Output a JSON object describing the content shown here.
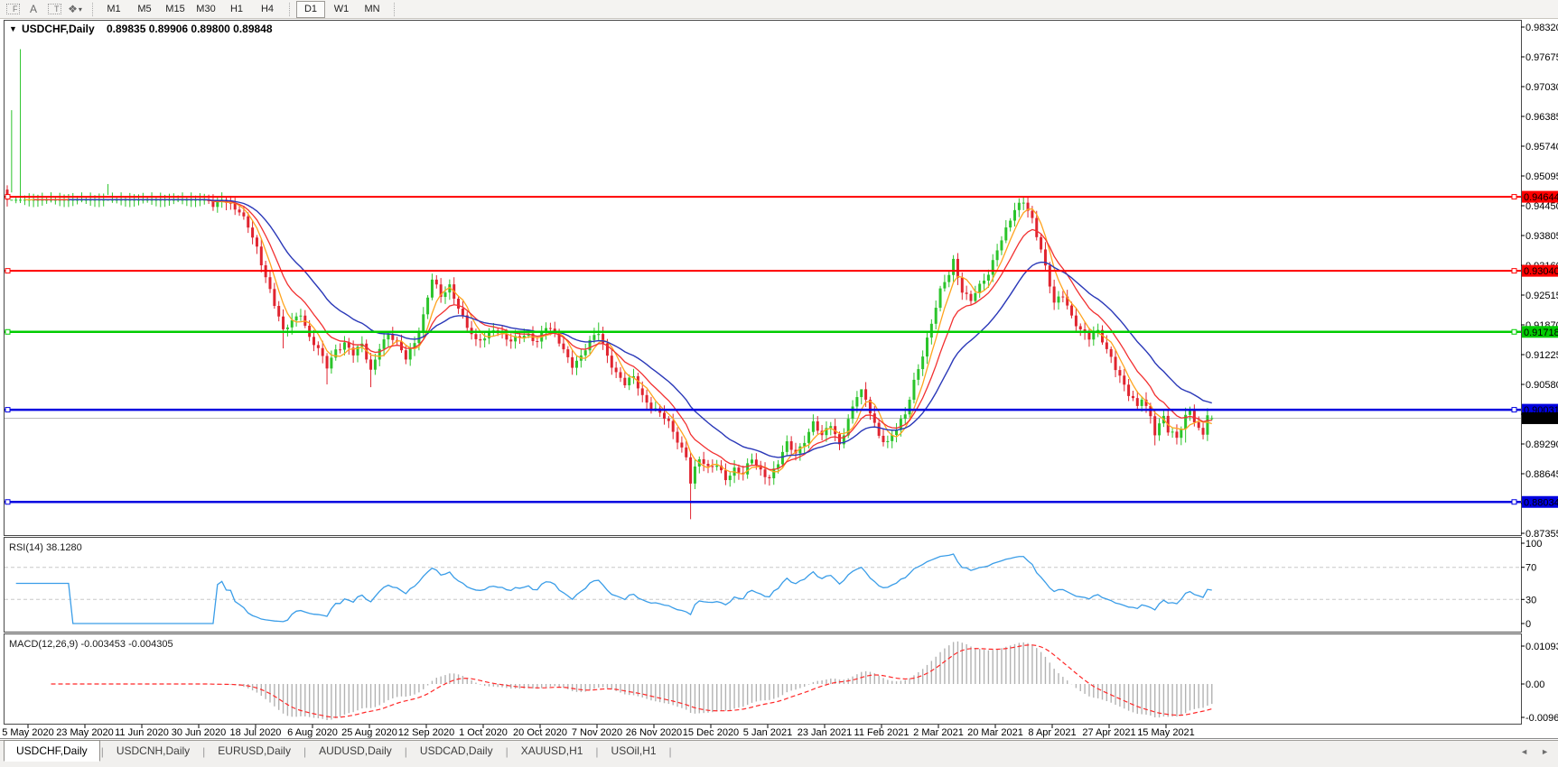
{
  "toolbar": {
    "tools": [
      {
        "name": "fibo-tool-icon",
        "glyph": "F"
      },
      {
        "name": "label-tool-icon",
        "glyph": "A"
      },
      {
        "name": "text-tool-icon",
        "glyph": "T"
      },
      {
        "name": "arrow-style-tool-icon",
        "glyph": "❖"
      }
    ],
    "dropdown_caret": "▾",
    "timeframes": [
      "M1",
      "M5",
      "M15",
      "M30",
      "H1",
      "H4",
      "D1",
      "W1",
      "MN"
    ],
    "active_timeframe": "D1"
  },
  "chart": {
    "collapse_glyph": "▼",
    "symbol_label": "USDCHF,Daily",
    "ohlc_display": "0.89835 0.89906 0.89800 0.89848"
  },
  "chart_data": {
    "type": "candlestick",
    "symbol": "USDCHF",
    "timeframe": "Daily",
    "bars_total": 276,
    "current_bar": {
      "open": 0.89835,
      "high": 0.89906,
      "low": 0.898,
      "close": 0.89848
    },
    "price_axis": {
      "ticks": [
        "0.98320",
        "0.97675",
        "0.97030",
        "0.96385",
        "0.95740",
        "0.95095",
        "0.94450",
        "0.93805",
        "0.93160",
        "0.92515",
        "0.91870",
        "0.91225",
        "0.90580",
        "0.89935",
        "0.89290",
        "0.88645",
        "0.88000",
        "0.87355"
      ],
      "top": 0.9832,
      "bottom": 0.87355,
      "step": 0.00645
    },
    "time_axis": [
      "5 May 2020",
      "23 May 2020",
      "11 Jun 2020",
      "30 Jun 2020",
      "18 Jul 2020",
      "6 Aug 2020",
      "25 Aug 2020",
      "12 Sep 2020",
      "1 Oct 2020",
      "20 Oct 2020",
      "7 Nov 2020",
      "26 Nov 2020",
      "15 Dec 2020",
      "5 Jan 2021",
      "23 Jan 2021",
      "11 Feb 2021",
      "2 Mar 2021",
      "20 Mar 2021",
      "8 Apr 2021",
      "27 Apr 2021",
      "15 May 2021"
    ],
    "horizontal_lines": [
      {
        "price": "0.94644",
        "value": 0.94644,
        "color": "#ff0000",
        "width": 2,
        "role": "resistance"
      },
      {
        "price": "0.93040",
        "value": 0.9304,
        "color": "#ff0000",
        "width": 2,
        "role": "resistance"
      },
      {
        "price": "0.91718",
        "value": 0.91718,
        "color": "#00cc00",
        "width": 2.5,
        "role": "level"
      },
      {
        "price": "0.90031",
        "value": 0.90031,
        "color": "#0000e0",
        "width": 2.5,
        "role": "support"
      },
      {
        "price": "0.88034",
        "value": 0.88034,
        "color": "#0000e0",
        "width": 2.5,
        "role": "support"
      }
    ],
    "current_price_line": {
      "price": "0.89848",
      "value": 0.89848,
      "line_color": "#bcbcbc",
      "label_bg": "#000000"
    },
    "candle_colors": {
      "up": "#2bc42b",
      "down": "#e0242f"
    },
    "moving_averages": [
      {
        "name": "fast",
        "kind": "sma",
        "period": 5,
        "color": "#ffa41e"
      },
      {
        "name": "medium",
        "kind": "ema",
        "period": 11,
        "color": "#f23030"
      },
      {
        "name": "slow",
        "kind": "ema",
        "period": 24,
        "color": "#2a38b8"
      }
    ],
    "price_path": [
      [
        0,
        0.97
      ],
      [
        2,
        0.9748
      ],
      [
        3,
        0.9725
      ],
      [
        5,
        0.9692
      ],
      [
        7,
        0.9722
      ],
      [
        9,
        0.9738
      ],
      [
        11,
        0.9705
      ],
      [
        13,
        0.9685
      ],
      [
        15,
        0.9662
      ],
      [
        17,
        0.9688
      ],
      [
        19,
        0.9672
      ],
      [
        21,
        0.9645
      ],
      [
        22,
        0.9608
      ],
      [
        23,
        0.9528
      ],
      [
        25,
        0.9595
      ],
      [
        27,
        0.9572
      ],
      [
        29,
        0.9538
      ],
      [
        31,
        0.9512
      ],
      [
        33,
        0.9545
      ],
      [
        35,
        0.9528
      ],
      [
        37,
        0.9502
      ],
      [
        39,
        0.9532
      ],
      [
        41,
        0.9548
      ],
      [
        43,
        0.9505
      ],
      [
        45,
        0.9462
      ],
      [
        47,
        0.9445
      ],
      [
        49,
        0.9468
      ],
      [
        51,
        0.9448
      ],
      [
        53,
        0.9425
      ],
      [
        55,
        0.9398
      ],
      [
        57,
        0.9358
      ],
      [
        59,
        0.9295
      ],
      [
        61,
        0.9228
      ],
      [
        63,
        0.9168
      ],
      [
        65,
        0.9198
      ],
      [
        67,
        0.9218
      ],
      [
        69,
        0.9158
      ],
      [
        71,
        0.9128
      ],
      [
        73,
        0.9095
      ],
      [
        75,
        0.9138
      ],
      [
        77,
        0.915
      ],
      [
        79,
        0.912
      ],
      [
        81,
        0.914
      ],
      [
        83,
        0.909
      ],
      [
        85,
        0.9145
      ],
      [
        87,
        0.9165
      ],
      [
        89,
        0.914
      ],
      [
        91,
        0.9115
      ],
      [
        93,
        0.9155
      ],
      [
        95,
        0.9208
      ],
      [
        97,
        0.9282
      ],
      [
        99,
        0.9245
      ],
      [
        101,
        0.9275
      ],
      [
        103,
        0.923
      ],
      [
        105,
        0.918
      ],
      [
        107,
        0.9145
      ],
      [
        109,
        0.916
      ],
      [
        111,
        0.9185
      ],
      [
        113,
        0.9165
      ],
      [
        115,
        0.9145
      ],
      [
        117,
        0.916
      ],
      [
        119,
        0.917
      ],
      [
        121,
        0.9155
      ],
      [
        123,
        0.918
      ],
      [
        125,
        0.9162
      ],
      [
        127,
        0.9135
      ],
      [
        129,
        0.9105
      ],
      [
        131,
        0.9118
      ],
      [
        133,
        0.9145
      ],
      [
        135,
        0.917
      ],
      [
        137,
        0.9125
      ],
      [
        139,
        0.9085
      ],
      [
        141,
        0.9055
      ],
      [
        143,
        0.907
      ],
      [
        145,
        0.9035
      ],
      [
        147,
        0.9015
      ],
      [
        149,
        0.8995
      ],
      [
        151,
        0.8968
      ],
      [
        153,
        0.8935
      ],
      [
        155,
        0.8908
      ],
      [
        156,
        0.8852
      ],
      [
        157,
        0.8878
      ],
      [
        158,
        0.8895
      ],
      [
        160,
        0.887
      ],
      [
        162,
        0.8885
      ],
      [
        164,
        0.886
      ],
      [
        166,
        0.8875
      ],
      [
        168,
        0.8858
      ],
      [
        170,
        0.8895
      ],
      [
        172,
        0.8875
      ],
      [
        174,
        0.886
      ],
      [
        176,
        0.8885
      ],
      [
        178,
        0.8925
      ],
      [
        180,
        0.891
      ],
      [
        182,
        0.8942
      ],
      [
        184,
        0.8975
      ],
      [
        186,
        0.894
      ],
      [
        188,
        0.897
      ],
      [
        190,
        0.8932
      ],
      [
        192,
        0.8985
      ],
      [
        194,
        0.903
      ],
      [
        195,
        0.9038
      ],
      [
        197,
        0.8998
      ],
      [
        199,
        0.8952
      ],
      [
        201,
        0.8935
      ],
      [
        203,
        0.8958
      ],
      [
        205,
        0.8988
      ],
      [
        207,
        0.9068
      ],
      [
        209,
        0.9128
      ],
      [
        211,
        0.9188
      ],
      [
        213,
        0.9255
      ],
      [
        215,
        0.9298
      ],
      [
        216,
        0.933
      ],
      [
        218,
        0.9265
      ],
      [
        220,
        0.9238
      ],
      [
        222,
        0.9265
      ],
      [
        224,
        0.9298
      ],
      [
        226,
        0.9358
      ],
      [
        228,
        0.9395
      ],
      [
        230,
        0.943
      ],
      [
        232,
        0.9452
      ],
      [
        234,
        0.942
      ],
      [
        236,
        0.9355
      ],
      [
        238,
        0.927
      ],
      [
        239,
        0.9228
      ],
      [
        241,
        0.925
      ],
      [
        243,
        0.921
      ],
      [
        245,
        0.918
      ],
      [
        247,
        0.9155
      ],
      [
        249,
        0.9168
      ],
      [
        251,
        0.9135
      ],
      [
        252,
        0.9122
      ],
      [
        254,
        0.9078
      ],
      [
        256,
        0.9032
      ],
      [
        258,
        0.9005
      ],
      [
        259,
        0.9028
      ],
      [
        261,
        0.8995
      ],
      [
        262,
        0.8958
      ],
      [
        264,
        0.8988
      ],
      [
        265,
        0.8952
      ],
      [
        267,
        0.8938
      ],
      [
        269,
        0.8992
      ],
      [
        270,
        0.9008
      ],
      [
        272,
        0.8962
      ],
      [
        273,
        0.8948
      ],
      [
        274,
        0.8988
      ],
      [
        275,
        0.89848
      ]
    ],
    "wick_events": [
      [
        1,
        "l",
        0.9652
      ],
      [
        3,
        "h",
        0.9784
      ],
      [
        23,
        "l",
        0.9492
      ],
      [
        63,
        "l",
        0.9136
      ],
      [
        73,
        "l",
        0.9058
      ],
      [
        83,
        "l",
        0.9052
      ],
      [
        97,
        "h",
        0.9298
      ],
      [
        135,
        "h",
        0.9192
      ],
      [
        156,
        "l",
        0.8766
      ],
      [
        195,
        "h",
        0.9046
      ],
      [
        216,
        "h",
        0.9338
      ],
      [
        232,
        "h",
        0.9465
      ],
      [
        262,
        "l",
        0.8926
      ],
      [
        269,
        "l",
        0.8932
      ]
    ],
    "generation": {
      "wiggle_amps": [
        0.00055,
        0.00085
      ],
      "wiggle_freqs": [
        2.13,
        0.71
      ],
      "wiggle_phase": 1.3,
      "wick_base": 0.0005,
      "wick_amp": 0.0011
    },
    "indicators": {
      "rsi": {
        "label": "RSI(14) 38.1280",
        "period": 14,
        "current": 38.128,
        "axis_ticks": [
          "100",
          "70",
          "30",
          "0"
        ],
        "dashed_levels": [
          70,
          30
        ],
        "range": [
          0,
          100
        ],
        "color": "#3a9de8",
        "level_color": "#c8c8c8"
      },
      "macd": {
        "label": "MACD(12,26,9) -0.003453 -0.004305",
        "params": [
          12,
          26,
          9
        ],
        "main": -0.003453,
        "signal": -0.004305,
        "axis_ticks": [
          "0.010933",
          "0.00",
          "-0.00965"
        ],
        "histogram_color": "#b2b2b2",
        "signal_color": "#ff2828"
      }
    }
  },
  "tabs": {
    "items": [
      {
        "label": "USDCHF,Daily",
        "active": true
      },
      {
        "label": "USDCNH,Daily",
        "active": false
      },
      {
        "label": "EURUSD,Daily",
        "active": false
      },
      {
        "label": "AUDUSD,Daily",
        "active": false
      },
      {
        "label": "USDCAD,Daily",
        "active": false
      },
      {
        "label": "XAUUSD,H1",
        "active": false
      },
      {
        "label": "USOil,H1",
        "active": false
      }
    ],
    "scroll_left": "◄",
    "scroll_right": "►"
  }
}
